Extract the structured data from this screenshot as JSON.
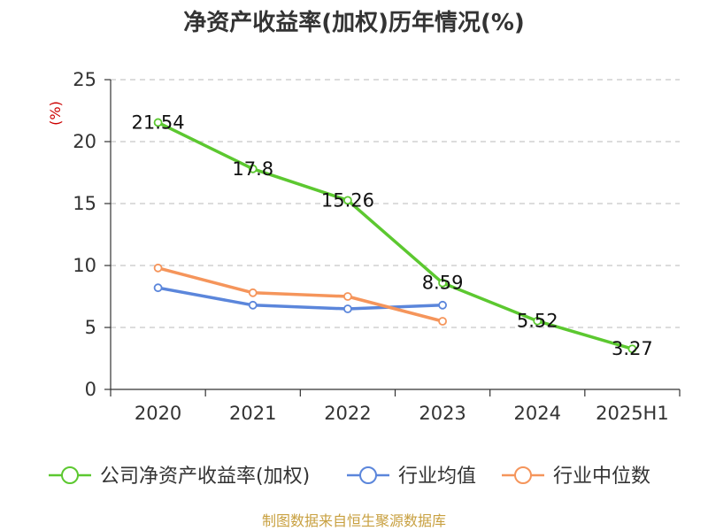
{
  "chart_data": {
    "type": "line",
    "title": "净资产收益率(加权)历年情况(%)",
    "ylabel": "(%)",
    "categories": [
      "2020",
      "2021",
      "2022",
      "2023",
      "2024",
      "2025H1"
    ],
    "ylim": [
      0,
      25
    ],
    "yticks": [
      0,
      5,
      10,
      15,
      20,
      25
    ],
    "grid": true,
    "legend_position": "bottom",
    "series": [
      {
        "name": "公司净资产收益率(加权)",
        "color": "#5cc830",
        "values": [
          21.54,
          17.8,
          15.26,
          8.59,
          5.52,
          3.27
        ],
        "labels": [
          "21.54",
          "17.8",
          "15.26",
          "8.59",
          "5.52",
          "3.27"
        ]
      },
      {
        "name": "行业均值",
        "color": "#5b86db",
        "values": [
          8.2,
          6.8,
          6.5,
          6.8,
          null,
          null
        ]
      },
      {
        "name": "行业中位数",
        "color": "#f5955b",
        "values": [
          9.8,
          7.8,
          7.5,
          5.5,
          null,
          null
        ]
      }
    ],
    "unit_color": "#cc0000"
  },
  "footer": {
    "source": "制图数据来自恒生聚源数据库",
    "source_color": "#c8a040"
  }
}
